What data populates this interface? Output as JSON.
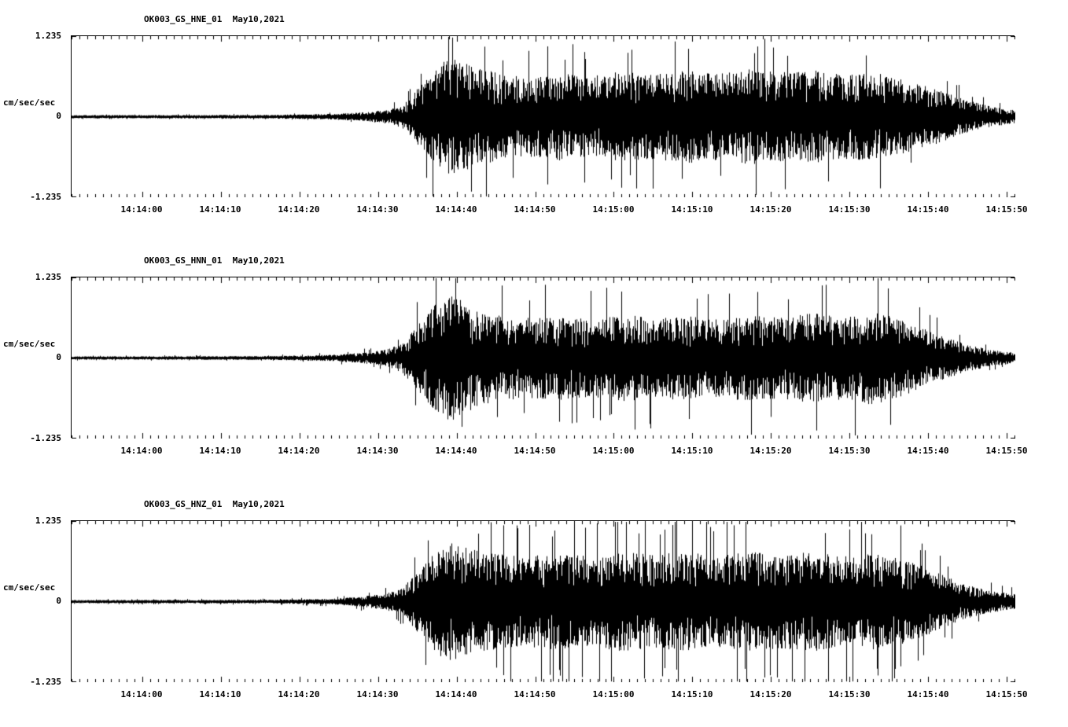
{
  "page": {
    "background": "#ffffff",
    "trace_color": "#000000"
  },
  "chart_data": [
    {
      "type": "line",
      "title": "OK003_GS_HNE_01  May10,2021",
      "station": "OK003_GS_HNE_01",
      "channel": "HNE",
      "date": "May10,2021",
      "ylabel": "cm/sec/sec",
      "yticks": [
        "1.235",
        "0",
        "-1.235"
      ],
      "ylim": [
        -1.235,
        1.235
      ],
      "x_range_seconds": [
        0,
        120
      ],
      "xtick_labels": [
        "14:14:00",
        "14:14:10",
        "14:14:20",
        "14:14:30",
        "14:14:40",
        "14:14:50",
        "14:15:00",
        "14:15:10",
        "14:15:20",
        "14:15:30",
        "14:15:40",
        "14:15:50"
      ],
      "xtick_seconds": [
        9,
        19,
        29,
        39,
        49,
        59,
        69,
        79,
        89,
        99,
        109,
        119
      ],
      "grid": false,
      "legend": "none",
      "envelope": {
        "t": [
          0,
          25,
          33,
          37,
          40,
          42,
          44,
          46,
          48,
          50,
          52,
          55,
          58,
          62,
          66,
          70,
          74,
          78,
          82,
          86,
          90,
          94,
          98,
          102,
          105,
          108,
          111,
          114,
          117,
          120
        ],
        "a": [
          0.015,
          0.018,
          0.03,
          0.05,
          0.08,
          0.13,
          0.35,
          0.6,
          0.72,
          0.68,
          0.6,
          0.52,
          0.5,
          0.54,
          0.5,
          0.56,
          0.52,
          0.58,
          0.54,
          0.6,
          0.55,
          0.58,
          0.52,
          0.55,
          0.48,
          0.4,
          0.3,
          0.2,
          0.12,
          0.08
        ]
      },
      "spikes": {
        "prob": 0.035,
        "gain": 1.5
      },
      "seed": 7
    },
    {
      "type": "line",
      "title": "OK003_GS_HNN_01  May10,2021",
      "station": "OK003_GS_HNN_01",
      "channel": "HNN",
      "date": "May10,2021",
      "ylabel": "cm/sec/sec",
      "yticks": [
        "1.235",
        "0",
        "-1.235"
      ],
      "ylim": [
        -1.235,
        1.235
      ],
      "x_range_seconds": [
        0,
        120
      ],
      "xtick_labels": [
        "14:14:00",
        "14:14:10",
        "14:14:20",
        "14:14:30",
        "14:14:40",
        "14:14:50",
        "14:15:00",
        "14:15:10",
        "14:15:20",
        "14:15:30",
        "14:15:40",
        "14:15:50"
      ],
      "xtick_seconds": [
        9,
        19,
        29,
        39,
        49,
        59,
        69,
        79,
        89,
        99,
        109,
        119
      ],
      "grid": false,
      "legend": "none",
      "envelope": {
        "t": [
          0,
          25,
          33,
          37,
          40,
          42,
          44,
          46,
          48,
          50,
          52,
          55,
          58,
          62,
          66,
          70,
          74,
          78,
          82,
          86,
          90,
          94,
          98,
          102,
          105,
          108,
          111,
          114,
          117,
          120
        ],
        "a": [
          0.015,
          0.018,
          0.035,
          0.06,
          0.1,
          0.18,
          0.4,
          0.65,
          0.8,
          0.7,
          0.58,
          0.52,
          0.5,
          0.52,
          0.48,
          0.54,
          0.5,
          0.52,
          0.48,
          0.54,
          0.5,
          0.56,
          0.52,
          0.58,
          0.5,
          0.38,
          0.26,
          0.16,
          0.1,
          0.06
        ]
      },
      "spikes": {
        "prob": 0.04,
        "gain": 1.55
      },
      "seed": 13
    },
    {
      "type": "line",
      "title": "OK003_GS_HNZ_01  May10,2021",
      "station": "OK003_GS_HNZ_01",
      "channel": "HNZ",
      "date": "May10,2021",
      "ylabel": "cm/sec/sec",
      "yticks": [
        "1.235",
        "0",
        "-1.235"
      ],
      "ylim": [
        -1.235,
        1.235
      ],
      "x_range_seconds": [
        0,
        120
      ],
      "xtick_labels": [
        "14:14:00",
        "14:14:10",
        "14:14:20",
        "14:14:30",
        "14:14:40",
        "14:14:50",
        "14:15:00",
        "14:15:10",
        "14:15:20",
        "14:15:30",
        "14:15:40",
        "14:15:50"
      ],
      "xtick_seconds": [
        9,
        19,
        29,
        39,
        49,
        59,
        69,
        79,
        89,
        99,
        109,
        119
      ],
      "grid": false,
      "legend": "none",
      "envelope": {
        "t": [
          0,
          25,
          33,
          37,
          40,
          42,
          44,
          46,
          48,
          50,
          52,
          55,
          58,
          62,
          66,
          70,
          74,
          78,
          82,
          86,
          90,
          94,
          98,
          102,
          105,
          108,
          111,
          114,
          117,
          120
        ],
        "a": [
          0.015,
          0.018,
          0.03,
          0.06,
          0.1,
          0.16,
          0.38,
          0.62,
          0.75,
          0.68,
          0.62,
          0.58,
          0.56,
          0.6,
          0.56,
          0.62,
          0.58,
          0.62,
          0.58,
          0.62,
          0.58,
          0.62,
          0.56,
          0.6,
          0.55,
          0.45,
          0.32,
          0.2,
          0.13,
          0.09
        ]
      },
      "spikes": {
        "prob": 0.06,
        "gain": 1.6
      },
      "seed": 29
    }
  ]
}
